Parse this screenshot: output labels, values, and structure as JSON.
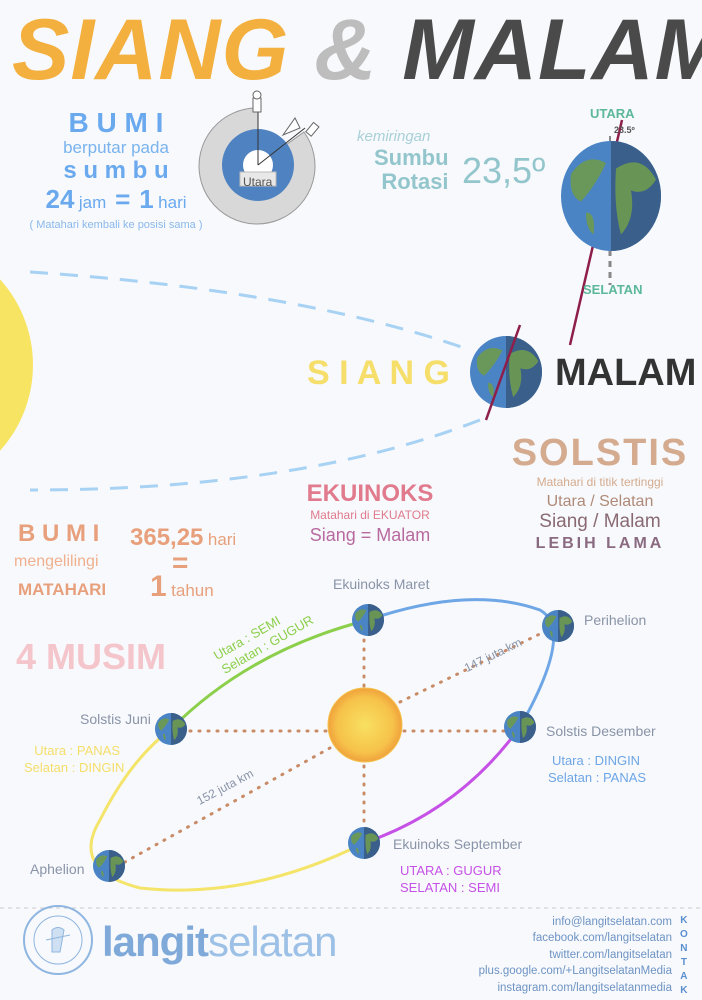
{
  "title": {
    "siang": "SIANG",
    "amp": "&",
    "malam": "MALAM"
  },
  "rotation": {
    "bumi": "B U M I",
    "berputar": "berputar pada",
    "sumbu": "s u m b u",
    "jam_num": "24",
    "jam": "jam",
    "eq": "=",
    "hari_num": "1",
    "hari": "hari",
    "note": "( Matahari kembali ke posisi sama )",
    "diagram_label": "Utara"
  },
  "tilt": {
    "kemiringan": "kemiringan",
    "sumbu": "Sumbu",
    "rotasi": "Rotasi",
    "value": "23,5º",
    "utara": "UTARA",
    "selatan": "SELATAN",
    "angle": "23.5º"
  },
  "day_night": {
    "siang": "S I A N G",
    "malam": "MALAM"
  },
  "solstis": {
    "title": "SOLSTIS",
    "line1": "Matahari di titik tertinggi",
    "line2": "Utara / Selatan",
    "line3": "Siang / Malam",
    "line4": "LEBIH LAMA"
  },
  "ekuinoks": {
    "title": "EKUINOKS",
    "line1": "Matahari di EKUATOR",
    "line2": "Siang = Malam"
  },
  "revolution": {
    "bumi": "B U M I",
    "mengelilingi": "mengelilingi",
    "matahari": "MATAHARI",
    "days_num": "365,25",
    "days": "hari",
    "eq": "=",
    "year_num": "1",
    "year": "tahun"
  },
  "musim": {
    "title": "4 MUSIM"
  },
  "orbit": {
    "ekuinoks_maret": "Ekuinoks Maret",
    "perihelion": "Perihelion",
    "solstis_desember": "Solstis Desember",
    "ekuinoks_september": "Ekuinoks September",
    "aphelion": "Aphelion",
    "solstis_juni": "Solstis Juni",
    "dist_perihelion": "147 juta km",
    "dist_aphelion": "152 juta km",
    "maret_seasons": {
      "u_label": "Utara : ",
      "u_val": "SEMI",
      "s_label": "Selatan : ",
      "s_val": "GUGUR"
    },
    "juni_seasons": {
      "u_label": "Utara : ",
      "u_val": "PANAS",
      "s_label": "Selatan : ",
      "s_val": "DINGIN"
    },
    "desember_seasons": {
      "u_label": "Utara : ",
      "u_val": "DINGIN",
      "s_label": "Selatan : ",
      "s_val": "PANAS"
    },
    "september_seasons": {
      "u_label": "UTARA : ",
      "u_val": "GUGUR",
      "s_label": "SELATAN : ",
      "s_val": "SEMI"
    },
    "colors": {
      "spring_north": "#8ccf4a",
      "summer_north": "#f5e46a",
      "autumn_north": "#c651e6",
      "winter_north": "#6ea6e6"
    }
  },
  "footer": {
    "logo_bold": "langit",
    "logo_light": "selatan",
    "contacts": [
      "info@langitselatan.com",
      "facebook.com/langitselatan",
      "twitter.com/langitselatan",
      "plus.google.com/+LangitselatanMedia",
      "instagram.com/langitselatanmedia"
    ],
    "kontak": [
      "K",
      "O",
      "N",
      "T",
      "A",
      "K"
    ]
  }
}
